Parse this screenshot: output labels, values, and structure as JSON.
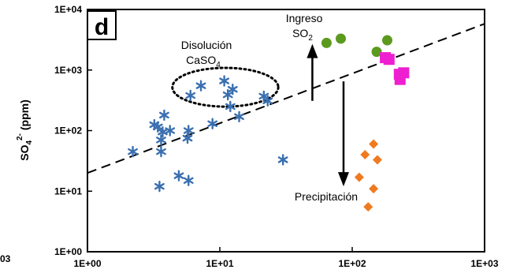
{
  "chart_data": {
    "type": "scatter",
    "panel_label": "d",
    "ylabel": {
      "main": "SO",
      "sub": "4",
      "sup": "2-",
      "unit": " (ppm)"
    },
    "x_scale": "log",
    "y_scale": "log",
    "xlim": [
      1,
      1000
    ],
    "ylim": [
      1,
      10000
    ],
    "x_ticks": [
      {
        "value": 1,
        "label": "1E+00"
      },
      {
        "value": 10,
        "label": "1E+01"
      },
      {
        "value": 100,
        "label": "1E+02"
      },
      {
        "value": 1000,
        "label": "1E+03"
      }
    ],
    "y_ticks": [
      {
        "value": 1,
        "label": "1E+00"
      },
      {
        "value": 10,
        "label": "1E+01"
      },
      {
        "value": 100,
        "label": "1E+02"
      },
      {
        "value": 1000,
        "label": "1E+03"
      },
      {
        "value": 10000,
        "label": "1E+04"
      }
    ],
    "cut_label": "03",
    "grid": false,
    "reference_line": {
      "style": "dashed",
      "color": "#000000",
      "points": [
        [
          1,
          20
        ],
        [
          1000,
          5800
        ]
      ]
    },
    "series": [
      {
        "marker": "asterisk",
        "color": "#3a6fb0",
        "points": [
          [
            2.2,
            45
          ],
          [
            3.2,
            125
          ],
          [
            3.4,
            115
          ],
          [
            3.7,
            95
          ],
          [
            3.8,
            180
          ],
          [
            3.6,
            70
          ],
          [
            3.6,
            45
          ],
          [
            4.2,
            100
          ],
          [
            5.8,
            100
          ],
          [
            5.7,
            75
          ],
          [
            3.5,
            12
          ],
          [
            4.9,
            18
          ],
          [
            5.8,
            15
          ],
          [
            6.0,
            380
          ],
          [
            7.2,
            550
          ],
          [
            8.8,
            130
          ],
          [
            10.8,
            660
          ],
          [
            11.5,
            390
          ],
          [
            12.5,
            480
          ],
          [
            12.0,
            250
          ],
          [
            14.0,
            170
          ],
          [
            21.5,
            370
          ],
          [
            23.0,
            310
          ],
          [
            30.0,
            33
          ]
        ]
      },
      {
        "marker": "circle",
        "color": "#5b9a1e",
        "points": [
          [
            64,
            2800
          ],
          [
            82,
            3300
          ],
          [
            153,
            2000
          ],
          [
            184,
            3100
          ]
        ]
      },
      {
        "marker": "square",
        "color": "#ee1fd0",
        "points": [
          [
            190,
            1500
          ],
          [
            178,
            1600
          ],
          [
            227,
            850
          ],
          [
            245,
            900
          ],
          [
            230,
            700
          ]
        ]
      },
      {
        "marker": "diamond",
        "color": "#f07a1f",
        "points": [
          [
            145,
            60
          ],
          [
            125,
            40
          ],
          [
            155,
            33
          ],
          [
            113,
            17
          ],
          [
            145,
            11
          ],
          [
            132,
            5.5
          ]
        ]
      }
    ],
    "ellipse": {
      "cx": 11,
      "cy": 520,
      "rx_decades": 0.4,
      "ry_decades": 0.32,
      "style": "dotted"
    },
    "annotations": [
      {
        "id": "disolucion",
        "lines": [
          "Disolución",
          "CaSO"
        ],
        "sub": "4"
      },
      {
        "id": "ingreso",
        "lines": [
          "Ingreso",
          "SO"
        ],
        "sub": "2"
      },
      {
        "id": "precipitacion",
        "lines": [
          "Precipitación"
        ]
      }
    ],
    "arrows": [
      {
        "direction": "up",
        "x": 50,
        "y_from": 310,
        "y_to": 2700
      },
      {
        "direction": "down",
        "x": 86,
        "y_from": 650,
        "y_to": 12
      }
    ]
  }
}
